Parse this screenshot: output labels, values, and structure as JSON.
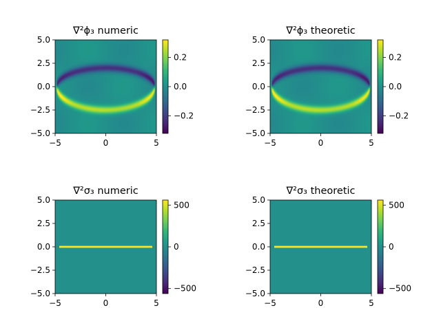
{
  "colormap": [
    "#440154",
    "#482878",
    "#3e4989",
    "#31688e",
    "#26828e",
    "#1f9e89",
    "#35b779",
    "#6ece58",
    "#b5de2b",
    "#fde725"
  ],
  "chart_data": [
    {
      "type": "heatmap",
      "title": "∇²ϕ₃ numeric",
      "xlim": [
        -5,
        5
      ],
      "ylim": [
        -5,
        5
      ],
      "xticks": [
        "−5",
        "0",
        "5"
      ],
      "yticks": [
        "5.0",
        "2.5",
        "0.0",
        "−2.5",
        "−5.0"
      ],
      "colorbar": {
        "min": -0.32,
        "max": 0.32,
        "ticks": [
          "0.2",
          "0.0",
          "−0.2"
        ],
        "tick_values": [
          0.2,
          0.0,
          -0.2
        ]
      },
      "field": "arcs"
    },
    {
      "type": "heatmap",
      "title": "∇²ϕ₃ theoretic",
      "xlim": [
        -5,
        5
      ],
      "ylim": [
        -5,
        5
      ],
      "xticks": [
        "−5",
        "0",
        "5"
      ],
      "yticks": [
        "5.0",
        "2.5",
        "0.0",
        "−2.5",
        "−5.0"
      ],
      "colorbar": {
        "min": -0.32,
        "max": 0.32,
        "ticks": [
          "0.2",
          "0.0",
          "−0.2"
        ],
        "tick_values": [
          0.2,
          0.0,
          -0.2
        ]
      },
      "field": "arcs"
    },
    {
      "type": "heatmap",
      "title": "∇²σ₃ numeric",
      "xlim": [
        -5,
        5
      ],
      "ylim": [
        -5,
        5
      ],
      "xticks": [
        "−5",
        "0",
        "5"
      ],
      "yticks": [
        "5.0",
        "2.5",
        "0.0",
        "−2.5",
        "−5.0"
      ],
      "colorbar": {
        "min": -560,
        "max": 560,
        "ticks": [
          "500",
          "0",
          "−500"
        ],
        "tick_values": [
          500,
          0,
          -500
        ]
      },
      "field": "line"
    },
    {
      "type": "heatmap",
      "title": "∇²σ₃ theoretic",
      "xlim": [
        -5,
        5
      ],
      "ylim": [
        -5,
        5
      ],
      "xticks": [
        "−5",
        "0",
        "5"
      ],
      "yticks": [
        "5.0",
        "2.5",
        "0.0",
        "−2.5",
        "−5.0"
      ],
      "colorbar": {
        "min": -560,
        "max": 560,
        "ticks": [
          "500",
          "0",
          "−500"
        ],
        "tick_values": [
          500,
          0,
          -500
        ]
      },
      "field": "line"
    }
  ]
}
